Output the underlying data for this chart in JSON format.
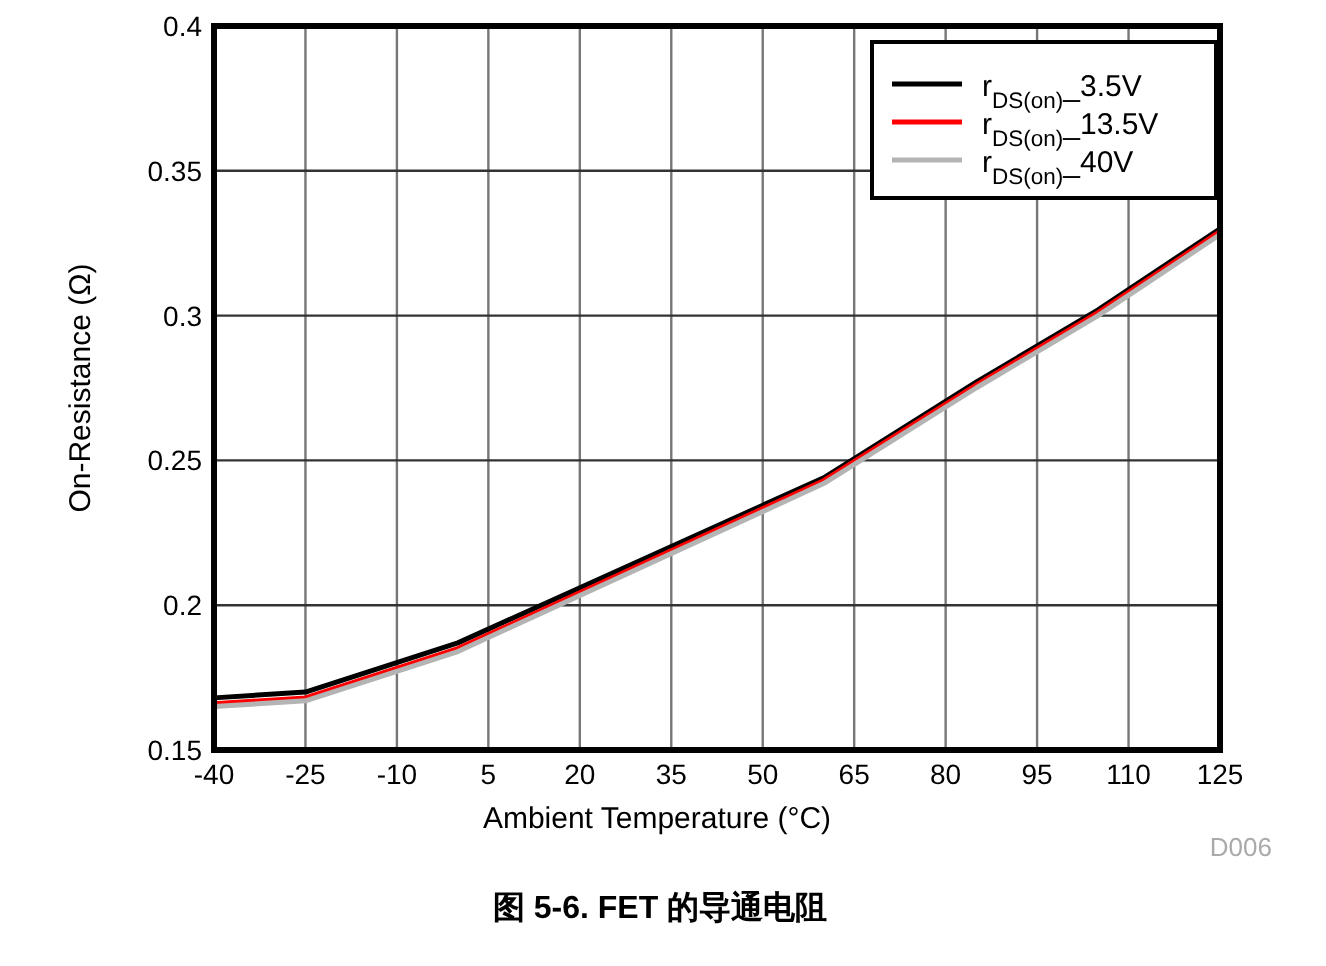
{
  "chart_data": {
    "type": "line",
    "title": "图 5-6. FET 的导通电阻",
    "xlabel": "Ambient Temperature (°C)",
    "ylabel": "On-Resistance (Ω)",
    "annotations": [
      "D006"
    ],
    "x": [
      -40,
      -25,
      0,
      60,
      85,
      105,
      125
    ],
    "series": [
      {
        "name": "r$_{DS(on)}$_3.5V",
        "color": "#000000",
        "values": [
          0.168,
          0.17,
          0.187,
          0.244,
          0.277,
          0.302,
          0.33
        ]
      },
      {
        "name": "r$_{DS(on)}$_13.5V",
        "color": "#ff0000",
        "values": [
          0.166,
          0.168,
          0.185,
          0.243,
          0.276,
          0.301,
          0.329
        ]
      },
      {
        "name": "r$_{DS(on)}$_40V",
        "color": "#b4b4b4",
        "values": [
          0.165,
          0.167,
          0.184,
          0.242,
          0.275,
          0.3,
          0.328
        ]
      }
    ],
    "xlim": [
      -40,
      125
    ],
    "xticks": [
      -40,
      -25,
      -10,
      5,
      20,
      35,
      50,
      65,
      80,
      95,
      110,
      125
    ],
    "ylim": [
      0.15,
      0.4
    ],
    "yticks": [
      0.15,
      0.2,
      0.25,
      0.3,
      0.35,
      0.4
    ],
    "grid": true,
    "legend": "top right",
    "marker": "none",
    "line_style": "solid"
  }
}
